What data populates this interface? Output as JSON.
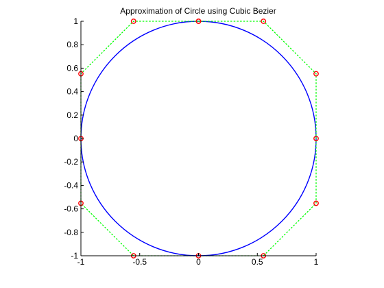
{
  "chart_data": {
    "type": "line",
    "title": "Approximation of Circle using Cubic Bezier",
    "xlabel": "",
    "ylabel": "",
    "xlim": [
      -1,
      1
    ],
    "ylim": [
      -1,
      1
    ],
    "grid": false,
    "x_ticks": [
      -1,
      -0.5,
      0,
      0.5,
      1
    ],
    "x_tick_labels": [
      "-1",
      "-0.5",
      "0",
      "0.5",
      "1"
    ],
    "y_ticks": [
      -1,
      -0.8,
      -0.6,
      -0.4,
      -0.2,
      0,
      0.2,
      0.4,
      0.6,
      0.8,
      1
    ],
    "y_tick_labels": [
      "-1",
      "-0.8",
      "-0.6",
      "-0.4",
      "-0.2",
      "0",
      "0.2",
      "0.4",
      "0.6",
      "0.8",
      "1"
    ],
    "series": [
      {
        "style": "solid",
        "color": "#0000ff",
        "segments": [
          {
            "p0": [
              0,
              1
            ],
            "p1": [
              0.5523,
              1
            ],
            "p2": [
              1,
              0.5523
            ],
            "p3": [
              1,
              0
            ]
          },
          {
            "p0": [
              1,
              0
            ],
            "p1": [
              1,
              -0.5523
            ],
            "p2": [
              0.5523,
              -1
            ],
            "p3": [
              0,
              -1
            ]
          },
          {
            "p0": [
              0,
              -1
            ],
            "p1": [
              -0.5523,
              -1
            ],
            "p2": [
              -1,
              -0.5523
            ],
            "p3": [
              -1,
              0
            ]
          },
          {
            "p0": [
              -1,
              0
            ],
            "p1": [
              -1,
              0.5523
            ],
            "p2": [
              -0.5523,
              1
            ],
            "p3": [
              0,
              1
            ]
          }
        ]
      },
      {
        "style": "dotted",
        "color": "#00ff00",
        "marker_color": "#ff0000",
        "marker": "circle",
        "points": [
          [
            0,
            1
          ],
          [
            0.5523,
            1
          ],
          [
            1,
            0.5523
          ],
          [
            1,
            0
          ],
          [
            1,
            -0.5523
          ],
          [
            0.5523,
            -1
          ],
          [
            0,
            -1
          ],
          [
            -0.5523,
            -1
          ],
          [
            -1,
            -0.5523
          ],
          [
            -1,
            0
          ],
          [
            -1,
            0.5523
          ],
          [
            -0.5523,
            1
          ],
          [
            0,
            1
          ]
        ]
      }
    ]
  }
}
